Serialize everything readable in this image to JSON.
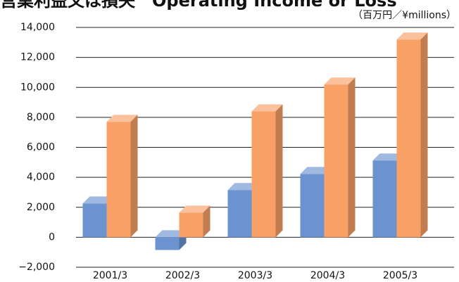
{
  "chart_data": {
    "type": "bar3d",
    "title": "営業利益又は損失　Operating Income or Loss",
    "unit_label": "（百万円／¥millions）",
    "categories": [
      "2001/3",
      "2002/3",
      "2003/3",
      "2004/3",
      "2005/3"
    ],
    "series": [
      {
        "color": "#6b93cf",
        "values": [
          2250,
          -850,
          3150,
          4220,
          5120
        ]
      },
      {
        "color": "#f8a066",
        "values": [
          7700,
          1640,
          8400,
          10190,
          13190
        ]
      }
    ],
    "ylim": [
      -2000,
      14000
    ],
    "yticks": [
      {
        "value": -2000,
        "label": "−2,000"
      },
      0,
      {
        "value": 2000,
        "label": "2,000"
      },
      {
        "value": 4000,
        "label": "4,000"
      },
      {
        "value": 6000,
        "label": "6,000"
      },
      {
        "value": 8000,
        "label": "8,000"
      },
      {
        "value": 10000,
        "label": "10,000"
      },
      {
        "value": 12000,
        "label": "12,000"
      },
      {
        "value": 14000,
        "label": "14,000"
      }
    ],
    "grid": true
  }
}
